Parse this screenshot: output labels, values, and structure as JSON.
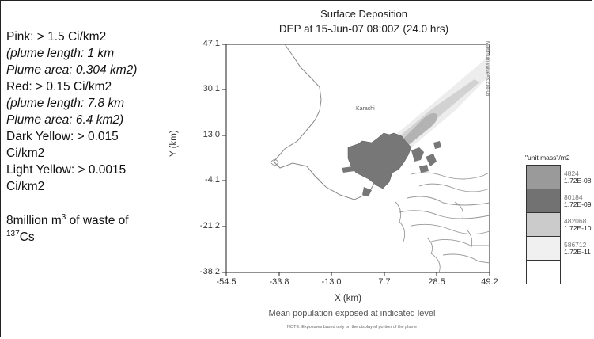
{
  "legend_text": {
    "line1": "Pink: > 1.5 Ci/km2",
    "line2": "(plume length: 1 km",
    "line3": "Plume area: 0.304 km2)",
    "line4": "Red: > 0.15 Ci/km2",
    "line5": "(plume length: 7.8 km",
    "line6": "Plume area: 6.4 km2)",
    "line7": "Dark Yellow: > 0.015",
    "line8": "Ci/km2",
    "line9": "Light Yellow: > 0.0015",
    "line10": "Ci/km2",
    "waste_pre": "8million m",
    "waste_sup": "3",
    "waste_post": " of waste of",
    "isotope_sup": "137",
    "isotope": "Cs"
  },
  "map": {
    "title": "Surface Deposition",
    "subtitle": "DEP at 15-Jun-07 08:00Z (24.0 hrs)",
    "city_label": "Karachi",
    "side_text": "Maximum value=8.21e-08",
    "y_axis_label": "Y (km)",
    "x_axis_label": "X (km)",
    "y_ticks": [
      "47.1",
      "30.1",
      "13.0",
      "-4.1",
      "-21.2",
      "-38.2"
    ],
    "x_ticks": [
      "-54.5",
      "-33.8",
      "-13.0",
      "7.7",
      "28.5",
      "49.2"
    ],
    "caption": "Mean population exposed at indicated level",
    "note": "NOTE: Exposures based only on the displayed portion of the plume"
  },
  "colorbar": {
    "title": "\"unit mass\"/m2",
    "levels": [
      {
        "count": "4824",
        "level": "1.72E-08",
        "color": "#9a9a9a"
      },
      {
        "count": "80184",
        "level": "1.72E-09",
        "color": "#727272"
      },
      {
        "count": "482068",
        "level": "1.72E-10",
        "color": "#cbcbcb"
      },
      {
        "count": "586712",
        "level": "1.72E-11",
        "color": "#f0f0f0"
      },
      {
        "count": "",
        "level": "",
        "color": "#ffffff"
      }
    ]
  }
}
